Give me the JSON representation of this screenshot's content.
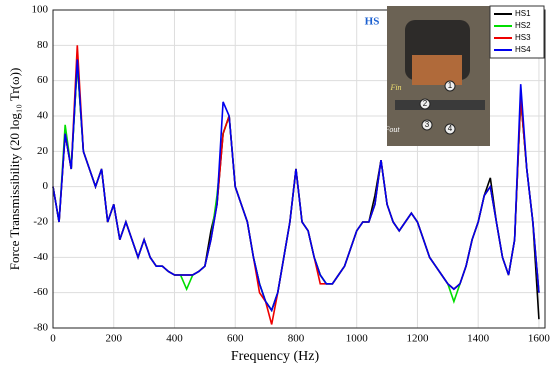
{
  "chart_data": {
    "type": "line",
    "x_label": "Frequency (Hz)",
    "y_label": "Force Transmissibility (20 log₁₀ Tr(ω))",
    "x": [
      0,
      20,
      40,
      60,
      80,
      100,
      120,
      140,
      160,
      180,
      200,
      220,
      240,
      260,
      280,
      300,
      320,
      340,
      360,
      380,
      400,
      420,
      440,
      460,
      480,
      500,
      520,
      540,
      560,
      580,
      600,
      620,
      640,
      660,
      680,
      700,
      720,
      740,
      760,
      780,
      800,
      820,
      840,
      860,
      880,
      900,
      920,
      940,
      960,
      980,
      1000,
      1020,
      1040,
      1060,
      1080,
      1100,
      1120,
      1140,
      1160,
      1180,
      1200,
      1220,
      1240,
      1260,
      1280,
      1300,
      1320,
      1340,
      1360,
      1380,
      1400,
      1420,
      1440,
      1460,
      1480,
      1500,
      1520,
      1540,
      1560,
      1580,
      1600
    ],
    "series": [
      {
        "name": "HS1",
        "color": "#000000",
        "values": [
          0,
          -20,
          30,
          10,
          70,
          20,
          10,
          0,
          10,
          -20,
          -10,
          -30,
          -20,
          -30,
          -40,
          -30,
          -40,
          -45,
          -45,
          -48,
          -50,
          -50,
          -50,
          -50,
          -48,
          -45,
          -25,
          -10,
          30,
          40,
          0,
          -10,
          -20,
          -40,
          -55,
          -65,
          -70,
          -60,
          -40,
          -20,
          10,
          -20,
          -25,
          -40,
          -50,
          -55,
          -55,
          -50,
          -45,
          -35,
          -25,
          -20,
          -20,
          -5,
          15,
          -10,
          -20,
          -25,
          -20,
          -15,
          -20,
          -30,
          -40,
          -45,
          -50,
          -55,
          -58,
          -55,
          -45,
          -30,
          -20,
          -5,
          5,
          -20,
          -40,
          -50,
          -30,
          50,
          10,
          -20,
          -75
        ]
      },
      {
        "name": "HS2",
        "color": "#00dd00",
        "values": [
          0,
          -20,
          35,
          10,
          70,
          20,
          10,
          0,
          10,
          -20,
          -10,
          -30,
          -20,
          -30,
          -40,
          -30,
          -40,
          -45,
          -45,
          -48,
          -50,
          -50,
          -58,
          -50,
          -48,
          -45,
          -30,
          -5,
          30,
          40,
          0,
          -10,
          -20,
          -40,
          -55,
          -65,
          -70,
          -60,
          -40,
          -20,
          10,
          -20,
          -25,
          -40,
          -50,
          -55,
          -55,
          -50,
          -45,
          -35,
          -25,
          -20,
          -20,
          -10,
          15,
          -10,
          -20,
          -25,
          -20,
          -15,
          -20,
          -30,
          -40,
          -45,
          -50,
          -55,
          -65,
          -55,
          -45,
          -30,
          -20,
          -5,
          0,
          -20,
          -40,
          -50,
          -30,
          50,
          10,
          -20,
          -60
        ]
      },
      {
        "name": "HS3",
        "color": "#ee0000",
        "values": [
          0,
          -20,
          30,
          10,
          80,
          20,
          10,
          0,
          10,
          -20,
          -10,
          -30,
          -20,
          -30,
          -40,
          -30,
          -40,
          -45,
          -45,
          -48,
          -50,
          -50,
          -50,
          -50,
          -48,
          -45,
          -30,
          -10,
          30,
          40,
          0,
          -10,
          -20,
          -40,
          -60,
          -65,
          -78,
          -60,
          -40,
          -20,
          10,
          -20,
          -25,
          -40,
          -55,
          -55,
          -55,
          -50,
          -45,
          -35,
          -25,
          -20,
          -20,
          -10,
          15,
          -10,
          -20,
          -25,
          -20,
          -15,
          -20,
          -30,
          -40,
          -45,
          -50,
          -55,
          -58,
          -55,
          -45,
          -30,
          -20,
          -5,
          0,
          -20,
          -40,
          -50,
          -30,
          50,
          10,
          -20,
          -60
        ]
      },
      {
        "name": "HS4",
        "color": "#0000ee",
        "values": [
          0,
          -20,
          30,
          10,
          72,
          20,
          10,
          0,
          10,
          -20,
          -10,
          -30,
          -20,
          -30,
          -40,
          -30,
          -40,
          -45,
          -45,
          -48,
          -50,
          -50,
          -50,
          -50,
          -48,
          -45,
          -30,
          -10,
          48,
          40,
          0,
          -10,
          -20,
          -40,
          -55,
          -65,
          -70,
          -60,
          -40,
          -20,
          10,
          -20,
          -25,
          -40,
          -50,
          -55,
          -55,
          -50,
          -45,
          -35,
          -25,
          -20,
          -20,
          -10,
          15,
          -10,
          -20,
          -25,
          -20,
          -15,
          -20,
          -30,
          -40,
          -45,
          -50,
          -55,
          -58,
          -55,
          -45,
          -30,
          -20,
          -5,
          0,
          -20,
          -40,
          -50,
          -30,
          58,
          10,
          -20,
          -60
        ]
      }
    ],
    "xlim": [
      0,
      1620
    ],
    "ylim": [
      -80,
      100
    ],
    "xticks": [
      0,
      200,
      400,
      600,
      800,
      1000,
      1200,
      1400,
      1600
    ],
    "yticks": [
      -80,
      -60,
      -40,
      -20,
      0,
      20,
      40,
      60,
      80,
      100
    ],
    "grid": true,
    "legend": "upper right",
    "annotations": [
      "HS",
      "Fin",
      "Fout",
      "1",
      "2",
      "3",
      "4"
    ]
  }
}
